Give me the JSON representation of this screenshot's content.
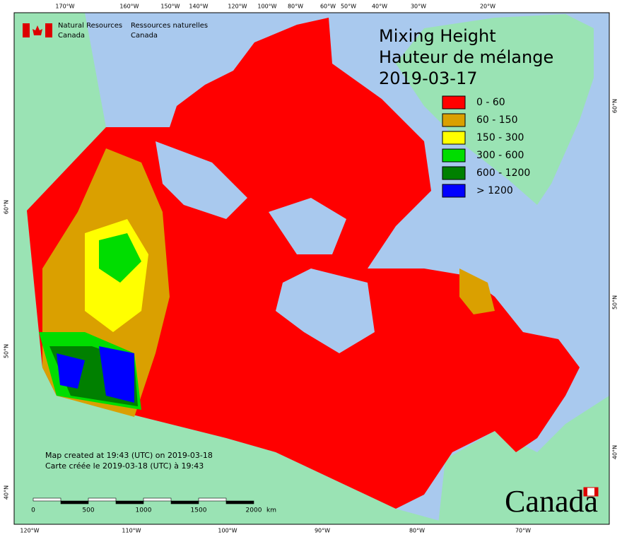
{
  "header": {
    "org_en": [
      "Natural Resources",
      "Canada"
    ],
    "org_fr": [
      "Ressources naturelles",
      "Canada"
    ]
  },
  "title": [
    "Mixing Height",
    "Hauteur de mélange",
    "2019-03-17"
  ],
  "legend": [
    {
      "label": "0 - 60",
      "color": "#ff0000"
    },
    {
      "label": "60 - 150",
      "color": "#daa000"
    },
    {
      "label": "150 - 300",
      "color": "#ffff00"
    },
    {
      "label": "300 - 600",
      "color": "#00dd00"
    },
    {
      "label": "600 - 1200",
      "color": "#008000"
    },
    {
      "label": "> 1200",
      "color": "#0000ff"
    }
  ],
  "graticule": {
    "top": [
      "170°W",
      "160°W",
      "150°W",
      "140°W",
      "120°W",
      "100°W",
      "80°W",
      "60°W",
      "50°W",
      "40°W",
      "30°W",
      "20°W"
    ],
    "bottom": [
      "120°W",
      "110°W",
      "100°W",
      "90°W",
      "80°W",
      "70°W"
    ],
    "left": [
      "60°N",
      "50°N",
      "40°N"
    ],
    "right": [
      "60°N",
      "50°N",
      "40°N"
    ]
  },
  "footer": [
    "Map created at 19:43 (UTC) on 2019-03-18",
    "Carte créée le 2019-03-18 (UTC) à 19:43"
  ],
  "scale_bar": {
    "labels": [
      0,
      500,
      1000,
      1500,
      2000
    ],
    "unit": "km"
  },
  "wordmark": "Canada"
}
